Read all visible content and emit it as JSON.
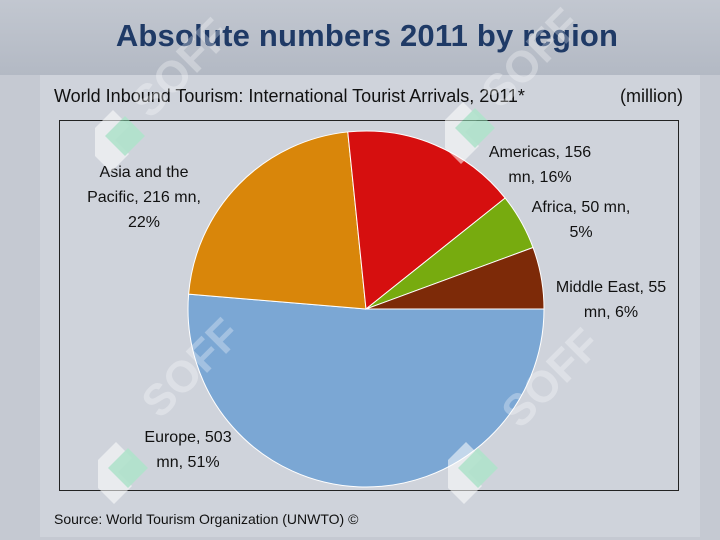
{
  "slide": {
    "title": "Absolute numbers 2011 by region"
  },
  "source": "Source: World Tourism Organization (UNWTO) ©",
  "watermark": "SOFF",
  "chart_data": {
    "type": "pie",
    "title": "World Inbound Tourism: International Tourist Arrivals, 2011*",
    "unit": "(million)",
    "series": [
      {
        "name": "Europe",
        "value": 503,
        "percent": 51,
        "color": "#7ba7d4",
        "label_lines": [
          "Europe, 503",
          "mn, 51%"
        ]
      },
      {
        "name": "Asia and the Pacific",
        "value": 216,
        "percent": 22,
        "color": "#d9860a",
        "label_lines": [
          "Asia and the",
          "Pacific, 216 mn,",
          "22%"
        ]
      },
      {
        "name": "Americas",
        "value": 156,
        "percent": 16,
        "color": "#d60f0f",
        "label_lines": [
          "Americas, 156",
          "mn, 16%"
        ]
      },
      {
        "name": "Africa",
        "value": 50,
        "percent": 5,
        "color": "#77ab0f",
        "label_lines": [
          "Africa, 50 mn,",
          "5%"
        ]
      },
      {
        "name": "Middle East",
        "value": 55,
        "percent": 6,
        "color": "#7d2a08",
        "label_lines": [
          "Middle East, 55",
          "mn, 6%"
        ]
      }
    ]
  }
}
